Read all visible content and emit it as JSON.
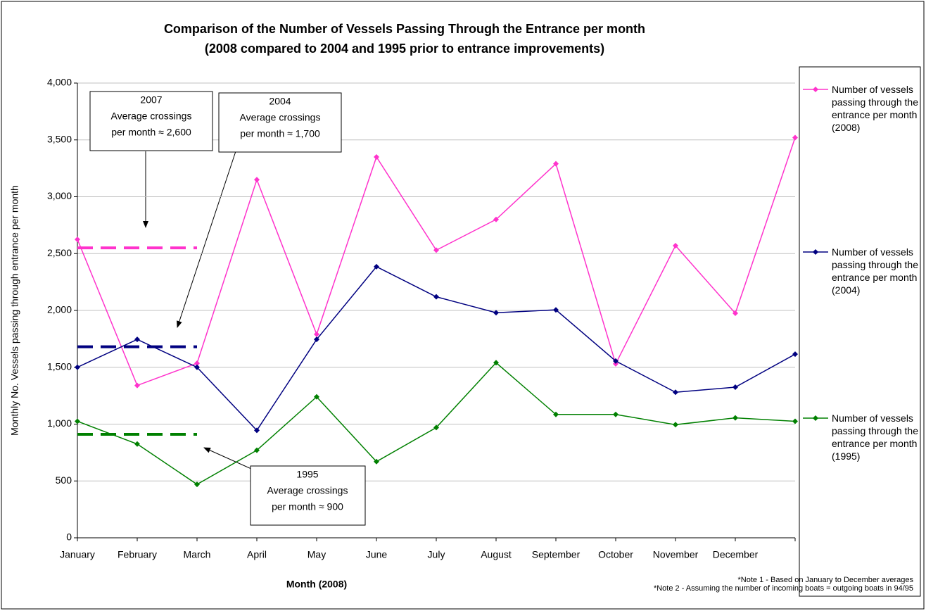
{
  "chart_data": {
    "type": "line",
    "title": [
      "Comparison of the Number of Vessels Passing Through the Entrance per month",
      "(2008 compared to 2004 and 1995 prior to entrance improvements)"
    ],
    "x_label": "Month (2008)",
    "y_label": "Monthly No. Vessels passing through entrance per month",
    "categories": [
      "January",
      "February",
      "March",
      "April",
      "May",
      "June",
      "July",
      "August",
      "September",
      "October",
      "November",
      "December",
      null
    ],
    "series": [
      {
        "name": "Number of vessels passing through the entrance per month (2008)",
        "color": "#ff33cc",
        "values": [
          2625,
          1340,
          1535,
          3150,
          1790,
          3350,
          2530,
          2800,
          3290,
          1530,
          2570,
          1975,
          3520
        ]
      },
      {
        "name": "Number of vessels passing through the entrance per month (2004)",
        "color": "#000080",
        "values": [
          1500,
          1745,
          1500,
          945,
          1745,
          2385,
          2120,
          1980,
          2005,
          1555,
          1280,
          1325,
          1615
        ]
      },
      {
        "name": "Number of vessels passing through the entrance per month (1995)",
        "color": "#008000",
        "values": [
          1025,
          825,
          470,
          770,
          1240,
          670,
          970,
          1540,
          1085,
          1085,
          995,
          1055,
          1025
        ]
      }
    ],
    "annotations": [
      {
        "lines": [
          "2007",
          "Average crossings",
          "per month ≈ 2,600"
        ],
        "value": 2550,
        "color": "#ff33cc"
      },
      {
        "lines": [
          "2004",
          "Average crossings",
          "per month ≈ 1,700"
        ],
        "value": 1680,
        "color": "#000080"
      },
      {
        "lines": [
          "1995",
          "Average crossings",
          "per month ≈ 900"
        ],
        "value": 910,
        "color": "#008000"
      }
    ],
    "notes": [
      "*Note 1 - Based on January to December averages",
      "*Note 2 - Assuming the number of incoming boats = outgoing boats in 94/95"
    ],
    "ylim": [
      0,
      4000
    ],
    "yticks": [
      0,
      500,
      {
        "value": 1000,
        "label": "1,000"
      },
      {
        "value": 1500,
        "label": "1,500"
      },
      {
        "value": 2000,
        "label": "2,000"
      },
      {
        "value": 2500,
        "label": "2,500"
      },
      {
        "value": 3000,
        "label": "3,000"
      },
      {
        "value": 3500,
        "label": "3,500"
      },
      {
        "value": 4000,
        "label": "4,000"
      }
    ],
    "grid": true
  }
}
